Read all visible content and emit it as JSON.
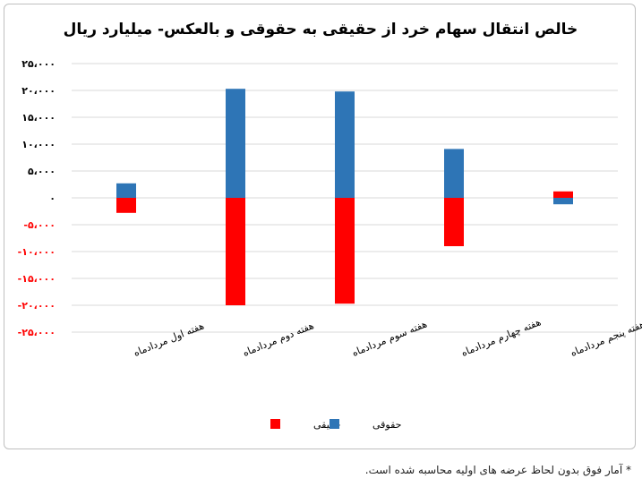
{
  "chart_data": {
    "type": "bar",
    "title": "خالص انتقال سهام خرد از حقیقی به حقوقی و بالعکس- میلیارد ریال",
    "categories": [
      "هفته اول مردادماه",
      "هفته دوم مردادماه",
      "هفته سوم مردادماه",
      "هفته چهارم مردادماه",
      "هفته پنجم مردادماه"
    ],
    "series": [
      {
        "name": "حقیقی",
        "color": "#ff0000",
        "values": [
          -2800,
          -20000,
          -19700,
          -9000,
          1200
        ]
      },
      {
        "name": "حقوقی",
        "color": "#2e75b6",
        "values": [
          2700,
          20300,
          19800,
          9100,
          -1200
        ]
      }
    ],
    "ylim": [
      -25000,
      25000
    ],
    "yticks": [
      25000,
      20000,
      15000,
      10000,
      5000,
      0,
      -5000,
      -10000,
      -15000,
      -20000,
      -25000
    ],
    "ytick_labels": [
      "۲۵،۰۰۰",
      "۲۰،۰۰۰",
      "۱۵،۰۰۰",
      "۱۰،۰۰۰",
      "۵،۰۰۰",
      "۰",
      "-۵،۰۰۰",
      "-۱۰،۰۰۰",
      "-۱۵،۰۰۰",
      "-۲۰،۰۰۰",
      "-۲۵،۰۰۰"
    ],
    "negative_tick_color": "#ff0000",
    "positive_tick_color": "#000000",
    "grid": true,
    "legend_position": "bottom"
  },
  "footnote": "* آمار فوق بدون لحاظ عرضه های اولیه محاسبه شده است."
}
